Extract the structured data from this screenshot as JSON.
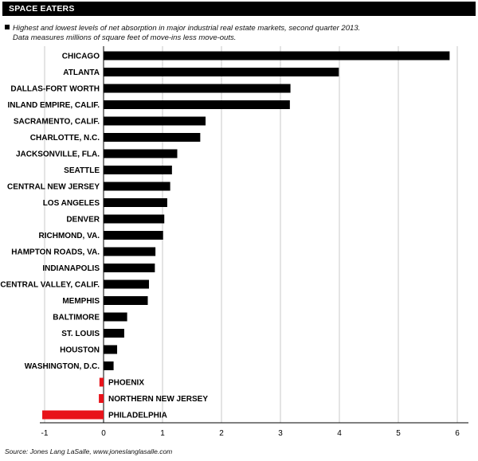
{
  "header": {
    "title": "SPACE EATERS",
    "subtitle_line1": "Highest and lowest levels of net absorption in major industrial real estate markets, second quarter 2013.",
    "subtitle_line2": "Data measures millions of square feet of move-ins less move-outs."
  },
  "footer": {
    "source": "Source: Jones Lang LaSalle, www.joneslanglasalle.com"
  },
  "colors": {
    "positive": "#000000",
    "negative": "#e8131a",
    "grid": "#bbbbbb"
  },
  "chart_data": {
    "type": "bar",
    "orientation": "horizontal",
    "categories": [
      "CHICAGO",
      "ATLANTA",
      "DALLAS-FORT WORTH",
      "INLAND EMPIRE, CALIF.",
      "SACRAMENTO, CALIF.",
      "CHARLOTTE, N.C.",
      "JACKSONVILLE, FLA.",
      "SEATTLE",
      "CENTRAL NEW JERSEY",
      "LOS ANGELES",
      "DENVER",
      "RICHMOND, VA.",
      "HAMPTON ROADS, VA.",
      "INDIANAPOLIS",
      "CENTRAL VALLEY, CALIF.",
      "MEMPHIS",
      "BALTIMORE",
      "ST. LOUIS",
      "HOUSTON",
      "WASHINGTON, D.C.",
      "PHOENIX",
      "NORTHERN NEW JERSEY",
      "PHILADELPHIA"
    ],
    "values": [
      5.87,
      3.99,
      3.17,
      3.16,
      1.73,
      1.64,
      1.25,
      1.16,
      1.13,
      1.08,
      1.03,
      1.01,
      0.88,
      0.87,
      0.77,
      0.75,
      0.4,
      0.35,
      0.23,
      0.17,
      -0.07,
      -0.08,
      -1.04
    ],
    "xlim": [
      -1,
      6
    ],
    "xticks": [
      "-1",
      "0",
      "1",
      "2",
      "3",
      "4",
      "5",
      "6"
    ],
    "grid": "vertical",
    "xlabel": "",
    "ylabel": ""
  }
}
